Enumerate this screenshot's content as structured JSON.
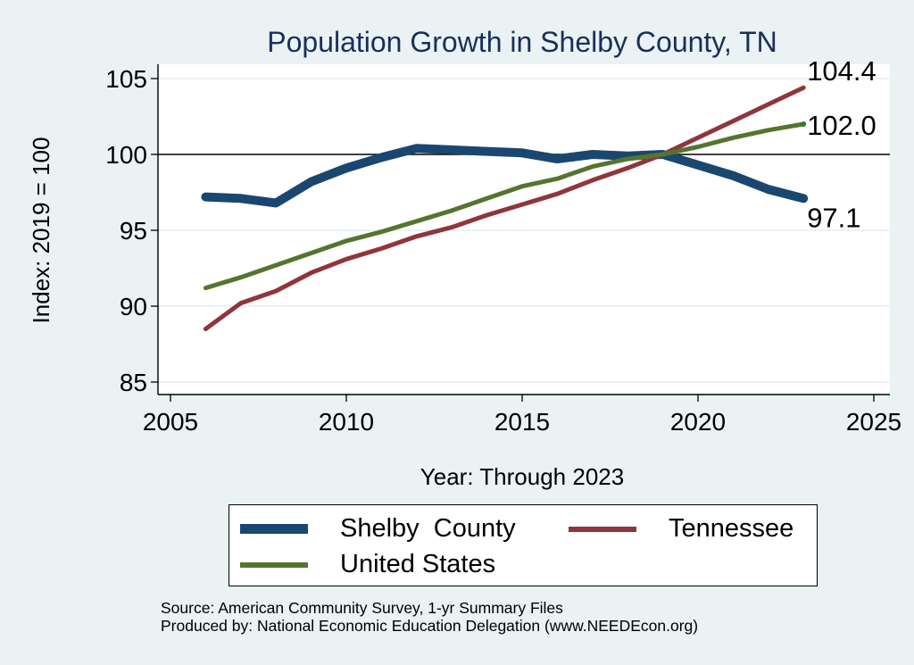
{
  "chart_data": {
    "type": "line",
    "title": "Population Growth in Shelby County, TN",
    "xlabel": "Year: Through 2023",
    "ylabel": "Index: 2019 = 100",
    "xlim": [
      2005,
      2025
    ],
    "ylim": [
      85,
      105
    ],
    "xticks": [
      2005,
      2010,
      2015,
      2020,
      2025
    ],
    "yticks": [
      85,
      90,
      95,
      100,
      105
    ],
    "reference_line_y": 100,
    "grid": true,
    "legend_position": "bottom",
    "x": [
      2006,
      2007,
      2008,
      2009,
      2010,
      2011,
      2012,
      2013,
      2014,
      2015,
      2016,
      2017,
      2018,
      2019,
      2020,
      2021,
      2022,
      2023
    ],
    "series": [
      {
        "name": "Shelby  County",
        "color": "#1a476f",
        "width": "thick",
        "values": [
          97.2,
          97.1,
          96.8,
          98.2,
          99.1,
          99.8,
          100.4,
          100.3,
          100.2,
          100.1,
          99.7,
          100.0,
          99.9,
          100.0,
          99.3,
          98.6,
          97.7,
          97.1
        ],
        "end_label": "97.1"
      },
      {
        "name": "Tennessee",
        "color": "#90353b",
        "width": "medium",
        "values": [
          88.5,
          90.2,
          91.0,
          92.2,
          93.1,
          93.8,
          94.6,
          95.2,
          96.0,
          96.7,
          97.4,
          98.3,
          99.1,
          100.0,
          101.1,
          102.2,
          103.3,
          104.4
        ],
        "end_label": "104.4"
      },
      {
        "name": "United States",
        "color": "#55752f",
        "width": "medium",
        "values": [
          91.2,
          91.9,
          92.7,
          93.5,
          94.3,
          94.9,
          95.6,
          96.3,
          97.1,
          97.9,
          98.4,
          99.2,
          99.7,
          100.0,
          100.5,
          101.1,
          101.6,
          102.0
        ],
        "end_label": "102.0"
      }
    ],
    "legend_order": [
      0,
      1,
      2
    ],
    "notes": [
      "Source: American Community Survey, 1-yr Summary Files",
      "Produced by: National Economic Education Delegation (www.NEEDEcon.org)"
    ]
  }
}
